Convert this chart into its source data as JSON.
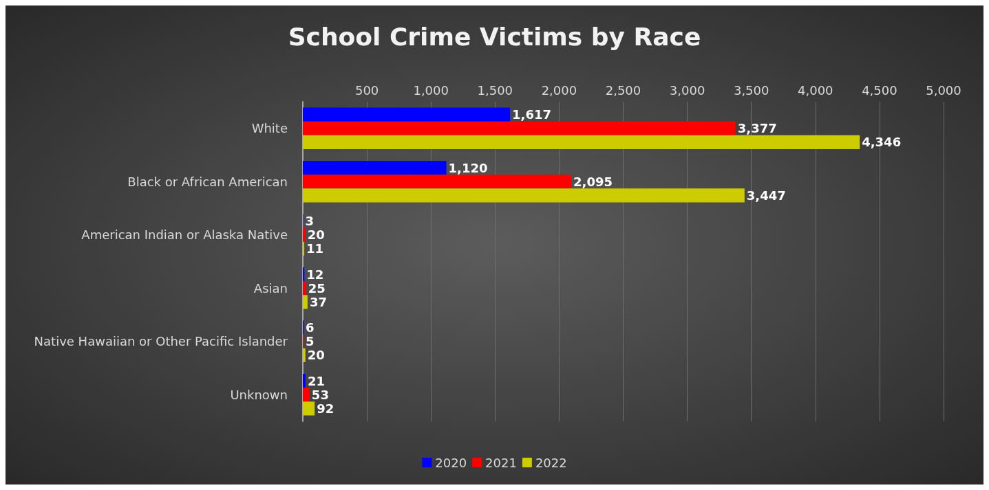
{
  "chart_data": {
    "type": "bar",
    "orientation": "horizontal",
    "title": "School Crime Victims by Race",
    "categories": [
      "White",
      "Black or African American",
      "American Indian or Alaska Native",
      "Asian",
      "Native Hawaiian or Other Pacific Islander",
      "Unknown"
    ],
    "series": [
      {
        "name": "2020",
        "color": "#0000ff",
        "values": [
          1617,
          1120,
          3,
          12,
          6,
          21
        ],
        "value_labels": [
          "1,617",
          "1,120",
          "3",
          "12",
          "6",
          "21"
        ]
      },
      {
        "name": "2021",
        "color": "#ff0000",
        "values": [
          3377,
          2095,
          20,
          25,
          5,
          53
        ],
        "value_labels": [
          "3,377",
          "2,095",
          "20",
          "25",
          "5",
          "53"
        ]
      },
      {
        "name": "2022",
        "color": "#cccc00",
        "values": [
          4346,
          3447,
          11,
          37,
          20,
          92
        ],
        "value_labels": [
          "4,346",
          "3,447",
          "11",
          "37",
          "20",
          "92"
        ]
      }
    ],
    "xlim": [
      0,
      5000
    ],
    "xticks": [
      500,
      {
        "value": 1000,
        "label": "1,000"
      },
      {
        "value": 1500,
        "label": "1,500"
      },
      {
        "value": 2000,
        "label": "2,000"
      },
      {
        "value": 2500,
        "label": "2,500"
      },
      {
        "value": 3000,
        "label": "3,000"
      },
      {
        "value": 3500,
        "label": "3,500"
      },
      {
        "value": 4000,
        "label": "4,000"
      },
      {
        "value": 4500,
        "label": "4,500"
      },
      {
        "value": 5000,
        "label": "5,000"
      }
    ],
    "grid": "x",
    "legend": "bottom"
  }
}
